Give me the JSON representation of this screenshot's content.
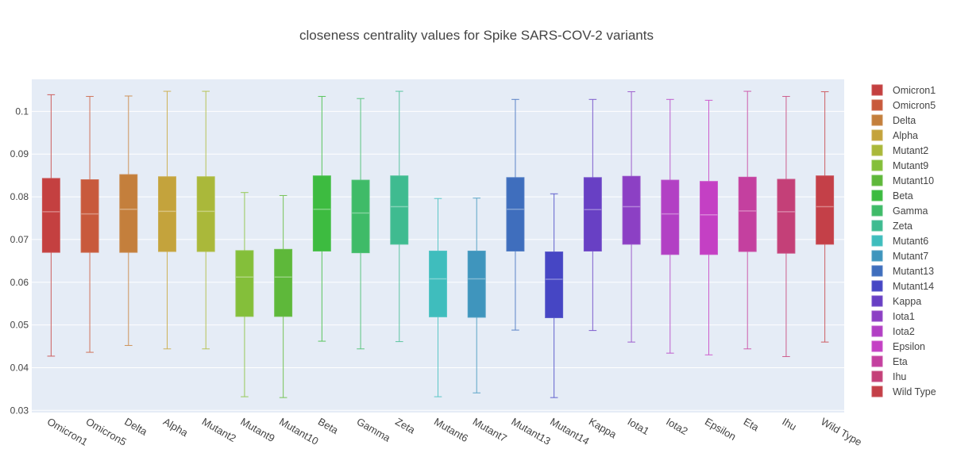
{
  "chart_data": {
    "type": "box",
    "title": "closeness centrality values for Spike SARS-COV-2 variants",
    "xlabel": "",
    "ylabel": "",
    "ylim": [
      0.0295,
      0.1075
    ],
    "yticks": [
      0.03,
      0.04,
      0.05,
      0.06,
      0.07,
      0.08,
      0.09,
      0.1
    ],
    "ytick_labels": [
      "0.03",
      "0.04",
      "0.05",
      "0.06",
      "0.07",
      "0.08",
      "0.09",
      "0.1"
    ],
    "grid": true,
    "legend_position": "right",
    "series": [
      {
        "name": "Omicron1",
        "color": "#c44040",
        "min": 0.0427,
        "q1": 0.067,
        "median": 0.0765,
        "q3": 0.0843,
        "max": 0.1039
      },
      {
        "name": "Omicron5",
        "color": "#c85a3c",
        "min": 0.0436,
        "q1": 0.067,
        "median": 0.076,
        "q3": 0.084,
        "max": 0.1035
      },
      {
        "name": "Delta",
        "color": "#c47f3c",
        "min": 0.0452,
        "q1": 0.067,
        "median": 0.0771,
        "q3": 0.0852,
        "max": 0.1036
      },
      {
        "name": "Alpha",
        "color": "#c4a33c",
        "min": 0.0444,
        "q1": 0.0672,
        "median": 0.0766,
        "q3": 0.0847,
        "max": 0.1047
      },
      {
        "name": "Mutant2",
        "color": "#aab83a",
        "min": 0.0444,
        "q1": 0.0672,
        "median": 0.0766,
        "q3": 0.0847,
        "max": 0.1047
      },
      {
        "name": "Mutant9",
        "color": "#84bf3a",
        "min": 0.0332,
        "q1": 0.052,
        "median": 0.0612,
        "q3": 0.0674,
        "max": 0.081
      },
      {
        "name": "Mutant10",
        "color": "#5eb83a",
        "min": 0.033,
        "q1": 0.052,
        "median": 0.0612,
        "q3": 0.0677,
        "max": 0.0803
      },
      {
        "name": "Beta",
        "color": "#3dbb40",
        "min": 0.0462,
        "q1": 0.0673,
        "median": 0.0771,
        "q3": 0.0849,
        "max": 0.1035
      },
      {
        "name": "Gamma",
        "color": "#3fbb68",
        "min": 0.0444,
        "q1": 0.0669,
        "median": 0.0762,
        "q3": 0.0839,
        "max": 0.103
      },
      {
        "name": "Zeta",
        "color": "#3fbb90",
        "min": 0.0461,
        "q1": 0.0689,
        "median": 0.0777,
        "q3": 0.0849,
        "max": 0.1047
      },
      {
        "name": "Mutant6",
        "color": "#3fbdbd",
        "min": 0.0332,
        "q1": 0.0519,
        "median": 0.0608,
        "q3": 0.0673,
        "max": 0.0796
      },
      {
        "name": "Mutant7",
        "color": "#3f95bd",
        "min": 0.0341,
        "q1": 0.0518,
        "median": 0.0608,
        "q3": 0.0673,
        "max": 0.0797
      },
      {
        "name": "Mutant13",
        "color": "#3f6ebd",
        "min": 0.0488,
        "q1": 0.0673,
        "median": 0.0771,
        "q3": 0.0845,
        "max": 0.1028
      },
      {
        "name": "Mutant14",
        "color": "#4646c4",
        "min": 0.033,
        "q1": 0.0517,
        "median": 0.0607,
        "q3": 0.0671,
        "max": 0.0807
      },
      {
        "name": "Kappa",
        "color": "#6840c4",
        "min": 0.0487,
        "q1": 0.0673,
        "median": 0.077,
        "q3": 0.0845,
        "max": 0.1028
      },
      {
        "name": "Iota1",
        "color": "#8c40c4",
        "min": 0.046,
        "q1": 0.0689,
        "median": 0.0777,
        "q3": 0.0848,
        "max": 0.1046
      },
      {
        "name": "Iota2",
        "color": "#b240c4",
        "min": 0.0434,
        "q1": 0.0665,
        "median": 0.076,
        "q3": 0.0839,
        "max": 0.1028
      },
      {
        "name": "Epsilon",
        "color": "#c440c4",
        "min": 0.043,
        "q1": 0.0665,
        "median": 0.0758,
        "q3": 0.0836,
        "max": 0.1026
      },
      {
        "name": "Eta",
        "color": "#c4409f",
        "min": 0.0444,
        "q1": 0.0672,
        "median": 0.0767,
        "q3": 0.0846,
        "max": 0.1047
      },
      {
        "name": "Ihu",
        "color": "#c44078",
        "min": 0.0426,
        "q1": 0.0668,
        "median": 0.0765,
        "q3": 0.0841,
        "max": 0.1035
      },
      {
        "name": "Wild Type",
        "color": "#c44048",
        "min": 0.046,
        "q1": 0.0689,
        "median": 0.0777,
        "q3": 0.0849,
        "max": 0.1046
      }
    ]
  }
}
